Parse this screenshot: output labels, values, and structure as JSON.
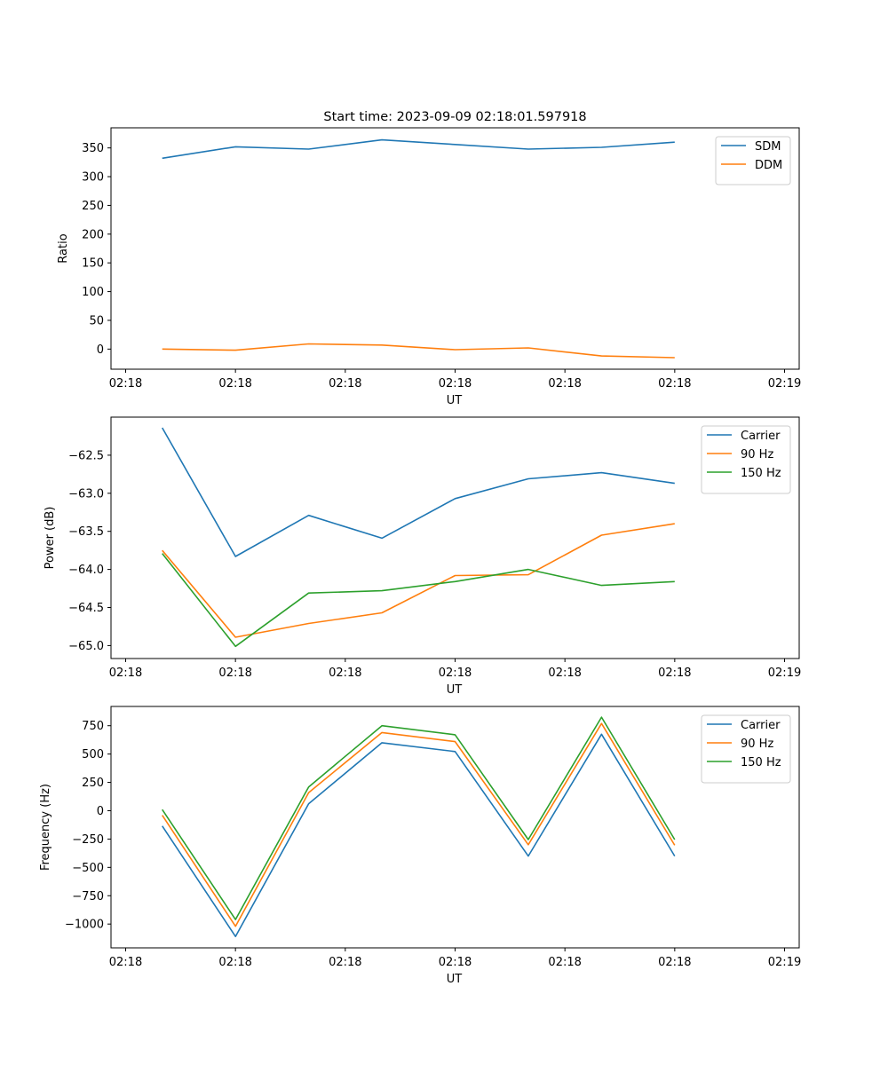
{
  "figure_title": "Start time: 2023-09-09 02:18:01.597918",
  "chart_data": [
    {
      "type": "line",
      "title": "Start time: 2023-09-09 02:18:01.597918",
      "xlabel": "UT",
      "ylabel": "Ratio",
      "x": [
        1,
        2,
        3,
        4,
        5,
        6,
        7,
        8
      ],
      "xlim": [
        0.3,
        9.7
      ],
      "xticks": [
        0.5,
        2.0,
        3.5,
        5.0,
        6.5,
        8.0,
        9.5
      ],
      "xtick_labels": [
        "02:18",
        "02:18",
        "02:18",
        "02:18",
        "02:18",
        "02:18",
        "02:19"
      ],
      "ylim": [
        -35,
        385
      ],
      "yticks": [
        0,
        50,
        100,
        150,
        200,
        250,
        300,
        350
      ],
      "ytick_labels": [
        "0",
        "50",
        "100",
        "150",
        "200",
        "250",
        "300",
        "350"
      ],
      "legend": "top-right",
      "series": [
        {
          "name": "SDM",
          "color": "#1f77b4",
          "values": [
            332,
            352,
            348,
            364,
            356,
            348,
            351,
            360
          ]
        },
        {
          "name": "DDM",
          "color": "#ff7f0e",
          "values": [
            0,
            -2,
            9,
            7,
            -1,
            2,
            -12,
            -15
          ]
        }
      ]
    },
    {
      "type": "line",
      "title": "",
      "xlabel": "UT",
      "ylabel": "Power (dB)",
      "x": [
        1,
        2,
        3,
        4,
        5,
        6,
        7,
        8
      ],
      "xlim": [
        0.3,
        9.7
      ],
      "xticks": [
        0.5,
        2.0,
        3.5,
        5.0,
        6.5,
        8.0,
        9.5
      ],
      "xtick_labels": [
        "02:18",
        "02:18",
        "02:18",
        "02:18",
        "02:18",
        "02:18",
        "02:19"
      ],
      "ylim": [
        -65.17,
        -62.0
      ],
      "yticks": [
        -65.0,
        -64.5,
        -64.0,
        -63.5,
        -63.0,
        -62.5
      ],
      "ytick_labels": [
        "−65.0",
        "−64.5",
        "−64.0",
        "−63.5",
        "−63.0",
        "−62.5"
      ],
      "legend": "top-right",
      "series": [
        {
          "name": "Carrier",
          "color": "#1f77b4",
          "values": [
            -62.14,
            -63.83,
            -63.29,
            -63.59,
            -63.07,
            -62.81,
            -62.73,
            -62.87
          ]
        },
        {
          "name": "90 Hz",
          "color": "#ff7f0e",
          "values": [
            -63.75,
            -64.89,
            -64.71,
            -64.57,
            -64.08,
            -64.07,
            -63.55,
            -63.4
          ]
        },
        {
          "name": "150 Hz",
          "color": "#2ca02c",
          "values": [
            -63.79,
            -65.01,
            -64.31,
            -64.28,
            -64.16,
            -64.0,
            -64.21,
            -64.16
          ]
        }
      ]
    },
    {
      "type": "line",
      "title": "",
      "xlabel": "UT",
      "ylabel": "Frequency (Hz)",
      "x": [
        1,
        2,
        3,
        4,
        5,
        6,
        7,
        8
      ],
      "xlim": [
        0.3,
        9.7
      ],
      "xticks": [
        0.5,
        2.0,
        3.5,
        5.0,
        6.5,
        8.0,
        9.5
      ],
      "xtick_labels": [
        "02:18",
        "02:18",
        "02:18",
        "02:18",
        "02:18",
        "02:18",
        "02:19"
      ],
      "ylim": [
        -1210,
        920
      ],
      "yticks": [
        -1000,
        -750,
        -500,
        -250,
        0,
        250,
        500,
        750
      ],
      "ytick_labels": [
        "−1000",
        "−750",
        "−500",
        "−250",
        "0",
        "250",
        "500",
        "750"
      ],
      "legend": "top-right",
      "series": [
        {
          "name": "Carrier",
          "color": "#1f77b4",
          "values": [
            -135,
            -1110,
            62,
            600,
            522,
            -400,
            675,
            -400
          ]
        },
        {
          "name": "90 Hz",
          "color": "#ff7f0e",
          "values": [
            -40,
            -1020,
            160,
            690,
            610,
            -300,
            770,
            -305
          ]
        },
        {
          "name": "150 Hz",
          "color": "#2ca02c",
          "values": [
            10,
            -960,
            210,
            750,
            670,
            -255,
            825,
            -255
          ]
        }
      ]
    }
  ]
}
